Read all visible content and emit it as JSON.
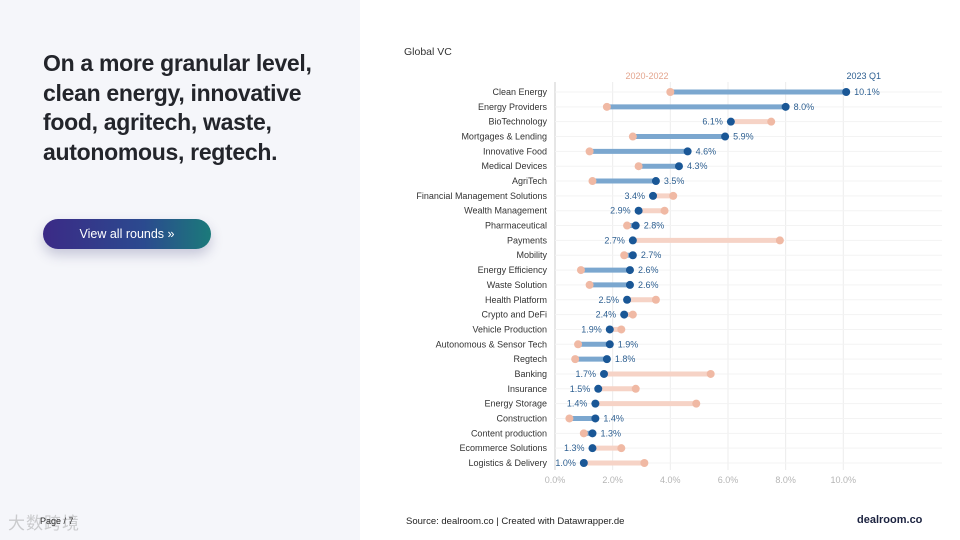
{
  "left": {
    "headline": "On a more granular level, clean energy, innovative food, agritech, waste, autonomous, regtech.",
    "button_label": "View all rounds »",
    "page_label": "Page / 7",
    "watermark": "大数跨境"
  },
  "footer": {
    "source": "Source: dealroom.co | Created with Datawrapper.de",
    "logo": "dealroom.co"
  },
  "colors": {
    "series_2020_2022": "#f0b9a4",
    "series_2023_q1": "#1a5796",
    "bar_up": "#7ba7cf"
  },
  "chart_data": {
    "type": "dumbbell",
    "title": "Global VC",
    "legend": [
      "2020-2022",
      "2023 Q1"
    ],
    "xlim": [
      0,
      10
    ],
    "xticks": [
      "0.0%",
      "2.0%",
      "4.0%",
      "6.0%",
      "8.0%",
      "10.0%"
    ],
    "grid": true,
    "categories": [
      "Clean Energy",
      "Energy Providers",
      "BioTechnology",
      "Mortgages & Lending",
      "Innovative Food",
      "Medical Devices",
      "AgriTech",
      "Financial Management Solutions",
      "Wealth Management",
      "Pharmaceutical",
      "Payments",
      "Mobility",
      "Energy Efficiency",
      "Waste Solution",
      "Health Platform",
      "Crypto and DeFi",
      "Vehicle Production",
      "Autonomous & Sensor Tech",
      "Regtech",
      "Banking",
      "Insurance",
      "Energy Storage",
      "Construction",
      "Content production",
      "Ecommerce Solutions",
      "Logistics & Delivery"
    ],
    "series": [
      {
        "name": "2020-2022",
        "values": [
          4.0,
          1.8,
          7.5,
          2.7,
          1.2,
          2.9,
          1.3,
          4.1,
          3.8,
          2.5,
          7.8,
          2.4,
          0.9,
          1.2,
          3.5,
          2.7,
          2.3,
          0.8,
          0.7,
          5.4,
          2.8,
          4.9,
          0.5,
          1.0,
          2.3,
          3.1
        ]
      },
      {
        "name": "2023 Q1",
        "values": [
          10.1,
          8.0,
          6.1,
          5.9,
          4.6,
          4.3,
          3.5,
          3.4,
          2.9,
          2.8,
          2.7,
          2.7,
          2.6,
          2.6,
          2.5,
          2.4,
          1.9,
          1.9,
          1.8,
          1.7,
          1.5,
          1.4,
          1.4,
          1.3,
          1.3,
          1.0
        ]
      }
    ],
    "value_labels": [
      "10.1%",
      "8.0%",
      "6.1%",
      "5.9%",
      "4.6%",
      "4.3%",
      "3.5%",
      "3.4%",
      "2.9%",
      "2.8%",
      "2.7%",
      "2.7%",
      "2.6%",
      "2.6%",
      "2.5%",
      "2.4%",
      "1.9%",
      "1.9%",
      "1.8%",
      "1.7%",
      "1.5%",
      "1.4%",
      "1.4%",
      "1.3%",
      "1.3%",
      "1.0%"
    ]
  }
}
